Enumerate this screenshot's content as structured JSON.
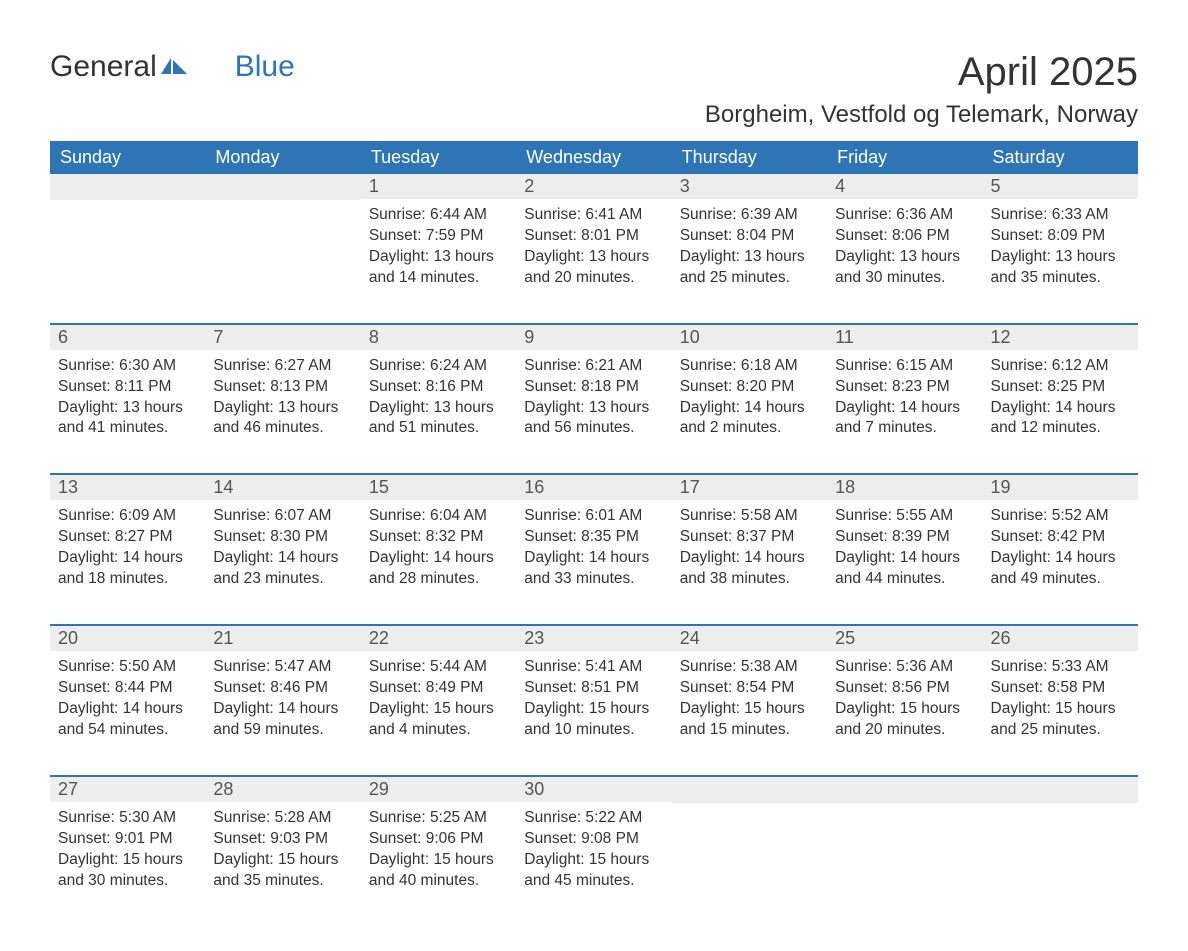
{
  "brand": {
    "part1": "General",
    "part2": "Blue",
    "color_primary": "#2e75b6",
    "color_text": "#333333"
  },
  "title": "April 2025",
  "location": "Borgheim, Vestfold og Telemark, Norway",
  "styling": {
    "header_bg": "#2e75b6",
    "header_text": "#ffffff",
    "daynum_bg": "#ededed",
    "daynum_text": "#555555",
    "body_text": "#333333",
    "week_border": "#2e75b6",
    "page_bg": "#ffffff",
    "title_fontsize": 40,
    "location_fontsize": 24,
    "weekday_fontsize": 18,
    "content_fontsize": 15.5
  },
  "weekdays": [
    "Sunday",
    "Monday",
    "Tuesday",
    "Wednesday",
    "Thursday",
    "Friday",
    "Saturday"
  ],
  "weeks": [
    [
      {
        "day": "",
        "sunrise": "",
        "sunset": "",
        "daylight": ""
      },
      {
        "day": "",
        "sunrise": "",
        "sunset": "",
        "daylight": ""
      },
      {
        "day": "1",
        "sunrise": "Sunrise: 6:44 AM",
        "sunset": "Sunset: 7:59 PM",
        "daylight": "Daylight: 13 hours and 14 minutes."
      },
      {
        "day": "2",
        "sunrise": "Sunrise: 6:41 AM",
        "sunset": "Sunset: 8:01 PM",
        "daylight": "Daylight: 13 hours and 20 minutes."
      },
      {
        "day": "3",
        "sunrise": "Sunrise: 6:39 AM",
        "sunset": "Sunset: 8:04 PM",
        "daylight": "Daylight: 13 hours and 25 minutes."
      },
      {
        "day": "4",
        "sunrise": "Sunrise: 6:36 AM",
        "sunset": "Sunset: 8:06 PM",
        "daylight": "Daylight: 13 hours and 30 minutes."
      },
      {
        "day": "5",
        "sunrise": "Sunrise: 6:33 AM",
        "sunset": "Sunset: 8:09 PM",
        "daylight": "Daylight: 13 hours and 35 minutes."
      }
    ],
    [
      {
        "day": "6",
        "sunrise": "Sunrise: 6:30 AM",
        "sunset": "Sunset: 8:11 PM",
        "daylight": "Daylight: 13 hours and 41 minutes."
      },
      {
        "day": "7",
        "sunrise": "Sunrise: 6:27 AM",
        "sunset": "Sunset: 8:13 PM",
        "daylight": "Daylight: 13 hours and 46 minutes."
      },
      {
        "day": "8",
        "sunrise": "Sunrise: 6:24 AM",
        "sunset": "Sunset: 8:16 PM",
        "daylight": "Daylight: 13 hours and 51 minutes."
      },
      {
        "day": "9",
        "sunrise": "Sunrise: 6:21 AM",
        "sunset": "Sunset: 8:18 PM",
        "daylight": "Daylight: 13 hours and 56 minutes."
      },
      {
        "day": "10",
        "sunrise": "Sunrise: 6:18 AM",
        "sunset": "Sunset: 8:20 PM",
        "daylight": "Daylight: 14 hours and 2 minutes."
      },
      {
        "day": "11",
        "sunrise": "Sunrise: 6:15 AM",
        "sunset": "Sunset: 8:23 PM",
        "daylight": "Daylight: 14 hours and 7 minutes."
      },
      {
        "day": "12",
        "sunrise": "Sunrise: 6:12 AM",
        "sunset": "Sunset: 8:25 PM",
        "daylight": "Daylight: 14 hours and 12 minutes."
      }
    ],
    [
      {
        "day": "13",
        "sunrise": "Sunrise: 6:09 AM",
        "sunset": "Sunset: 8:27 PM",
        "daylight": "Daylight: 14 hours and 18 minutes."
      },
      {
        "day": "14",
        "sunrise": "Sunrise: 6:07 AM",
        "sunset": "Sunset: 8:30 PM",
        "daylight": "Daylight: 14 hours and 23 minutes."
      },
      {
        "day": "15",
        "sunrise": "Sunrise: 6:04 AM",
        "sunset": "Sunset: 8:32 PM",
        "daylight": "Daylight: 14 hours and 28 minutes."
      },
      {
        "day": "16",
        "sunrise": "Sunrise: 6:01 AM",
        "sunset": "Sunset: 8:35 PM",
        "daylight": "Daylight: 14 hours and 33 minutes."
      },
      {
        "day": "17",
        "sunrise": "Sunrise: 5:58 AM",
        "sunset": "Sunset: 8:37 PM",
        "daylight": "Daylight: 14 hours and 38 minutes."
      },
      {
        "day": "18",
        "sunrise": "Sunrise: 5:55 AM",
        "sunset": "Sunset: 8:39 PM",
        "daylight": "Daylight: 14 hours and 44 minutes."
      },
      {
        "day": "19",
        "sunrise": "Sunrise: 5:52 AM",
        "sunset": "Sunset: 8:42 PM",
        "daylight": "Daylight: 14 hours and 49 minutes."
      }
    ],
    [
      {
        "day": "20",
        "sunrise": "Sunrise: 5:50 AM",
        "sunset": "Sunset: 8:44 PM",
        "daylight": "Daylight: 14 hours and 54 minutes."
      },
      {
        "day": "21",
        "sunrise": "Sunrise: 5:47 AM",
        "sunset": "Sunset: 8:46 PM",
        "daylight": "Daylight: 14 hours and 59 minutes."
      },
      {
        "day": "22",
        "sunrise": "Sunrise: 5:44 AM",
        "sunset": "Sunset: 8:49 PM",
        "daylight": "Daylight: 15 hours and 4 minutes."
      },
      {
        "day": "23",
        "sunrise": "Sunrise: 5:41 AM",
        "sunset": "Sunset: 8:51 PM",
        "daylight": "Daylight: 15 hours and 10 minutes."
      },
      {
        "day": "24",
        "sunrise": "Sunrise: 5:38 AM",
        "sunset": "Sunset: 8:54 PM",
        "daylight": "Daylight: 15 hours and 15 minutes."
      },
      {
        "day": "25",
        "sunrise": "Sunrise: 5:36 AM",
        "sunset": "Sunset: 8:56 PM",
        "daylight": "Daylight: 15 hours and 20 minutes."
      },
      {
        "day": "26",
        "sunrise": "Sunrise: 5:33 AM",
        "sunset": "Sunset: 8:58 PM",
        "daylight": "Daylight: 15 hours and 25 minutes."
      }
    ],
    [
      {
        "day": "27",
        "sunrise": "Sunrise: 5:30 AM",
        "sunset": "Sunset: 9:01 PM",
        "daylight": "Daylight: 15 hours and 30 minutes."
      },
      {
        "day": "28",
        "sunrise": "Sunrise: 5:28 AM",
        "sunset": "Sunset: 9:03 PM",
        "daylight": "Daylight: 15 hours and 35 minutes."
      },
      {
        "day": "29",
        "sunrise": "Sunrise: 5:25 AM",
        "sunset": "Sunset: 9:06 PM",
        "daylight": "Daylight: 15 hours and 40 minutes."
      },
      {
        "day": "30",
        "sunrise": "Sunrise: 5:22 AM",
        "sunset": "Sunset: 9:08 PM",
        "daylight": "Daylight: 15 hours and 45 minutes."
      },
      {
        "day": "",
        "sunrise": "",
        "sunset": "",
        "daylight": ""
      },
      {
        "day": "",
        "sunrise": "",
        "sunset": "",
        "daylight": ""
      },
      {
        "day": "",
        "sunrise": "",
        "sunset": "",
        "daylight": ""
      }
    ]
  ]
}
